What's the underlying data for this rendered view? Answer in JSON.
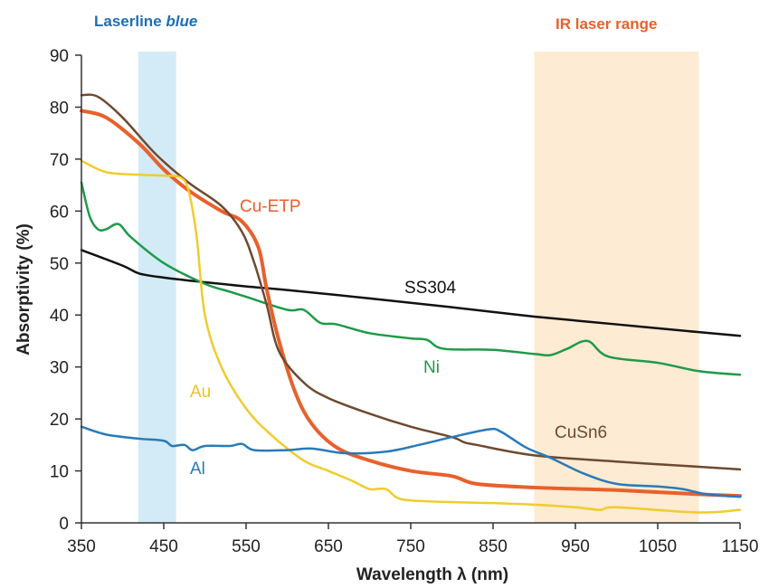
{
  "chart_data": {
    "type": "line",
    "title": "",
    "xlabel": "Wavelength λ (nm)",
    "ylabel": "Absorptivity (%)",
    "xlim": [
      350,
      1150
    ],
    "ylim": [
      0,
      90
    ],
    "xticks": [
      350,
      450,
      550,
      650,
      750,
      850,
      950,
      1050,
      1150
    ],
    "yticks": [
      0,
      10,
      20,
      30,
      40,
      50,
      60,
      70,
      80,
      90
    ],
    "grid": false,
    "bands": [
      {
        "label_prefix": "Laserline ",
        "label_emph": "blue",
        "range": [
          419,
          465
        ],
        "color": "#d3ebf7",
        "label_color": "#1f6fb4"
      },
      {
        "label_prefix": "IR laser range",
        "label_emph": "",
        "range": [
          900,
          1100
        ],
        "color": "#fdebd3",
        "label_color": "#e8602c"
      }
    ],
    "series": [
      {
        "name": "SS304",
        "color": "#111111",
        "width": 2.5,
        "x": [
          350,
          400,
          420,
          450,
          500,
          550,
          600,
          700,
          800,
          900,
          1000,
          1100,
          1150
        ],
        "y": [
          52.5,
          49.5,
          48,
          47.2,
          46.3,
          45.5,
          44.8,
          43.2,
          41.5,
          39.7,
          38.2,
          36.7,
          36
        ]
      },
      {
        "name": "Ni",
        "color": "#1e9a4a",
        "width": 2.5,
        "x": [
          350,
          360,
          370,
          380,
          395,
          410,
          450,
          500,
          530,
          550,
          600,
          620,
          640,
          660,
          700,
          750,
          770,
          790,
          850,
          900,
          920,
          940,
          965,
          990,
          1050,
          1100,
          1150
        ],
        "y": [
          65.5,
          59,
          56.5,
          56.5,
          57.5,
          55,
          50,
          46,
          44.5,
          43.5,
          41,
          41,
          38.5,
          38.2,
          36.5,
          35.5,
          35.2,
          33.5,
          33.3,
          32.5,
          32.3,
          33.5,
          35,
          32,
          30.8,
          29.2,
          28.5
        ]
      },
      {
        "name": "Cu-ETP",
        "color": "#e8602c",
        "width": 4,
        "x": [
          350,
          380,
          420,
          450,
          480,
          520,
          545,
          565,
          575,
          590,
          610,
          630,
          660,
          700,
          750,
          800,
          830,
          900,
          1000,
          1100,
          1150
        ],
        "y": [
          79.3,
          78,
          73,
          68,
          64,
          60,
          58,
          53,
          45,
          35,
          25,
          19,
          14.5,
          12,
          10,
          9,
          7.5,
          6.8,
          6.3,
          5.5,
          5.2
        ]
      },
      {
        "name": "CuSn6",
        "color": "#6e4a30",
        "width": 2.5,
        "x": [
          350,
          370,
          400,
          440,
          480,
          520,
          545,
          560,
          575,
          590,
          620,
          650,
          700,
          750,
          800,
          815,
          830,
          900,
          1000,
          1100,
          1150
        ],
        "y": [
          82.3,
          82,
          78,
          71,
          65.5,
          61,
          56,
          50,
          42,
          33,
          27,
          24,
          21,
          18.5,
          16.5,
          15.5,
          15,
          13,
          11.8,
          10.8,
          10.3
        ]
      },
      {
        "name": "Au",
        "color": "#f0cc2e",
        "width": 2.5,
        "x": [
          350,
          380,
          420,
          450,
          470,
          480,
          490,
          500,
          520,
          550,
          580,
          620,
          650,
          680,
          700,
          720,
          740,
          800,
          850,
          900,
          950,
          980,
          1000,
          1100,
          1150
        ],
        "y": [
          69.7,
          67.5,
          67,
          66.8,
          66.5,
          64,
          55,
          40,
          30,
          22,
          17,
          12,
          10,
          8,
          6.5,
          6.5,
          4.5,
          4,
          3.8,
          3.5,
          3,
          2.5,
          3,
          2,
          2.5
        ]
      },
      {
        "name": "Al",
        "color": "#2a7ab8",
        "width": 2.5,
        "x": [
          350,
          380,
          420,
          450,
          460,
          475,
          485,
          500,
          530,
          545,
          560,
          600,
          630,
          670,
          720,
          760,
          800,
          845,
          860,
          890,
          920,
          960,
          1000,
          1050,
          1080,
          1110,
          1150
        ],
        "y": [
          18.5,
          17,
          16.2,
          15.8,
          14.8,
          15,
          14,
          14.8,
          14.8,
          15.2,
          14,
          14,
          14.3,
          13.4,
          13.7,
          15,
          16.5,
          18,
          17.5,
          14.5,
          12.5,
          9.5,
          7.5,
          7,
          6.5,
          5.5,
          5
        ]
      }
    ]
  }
}
